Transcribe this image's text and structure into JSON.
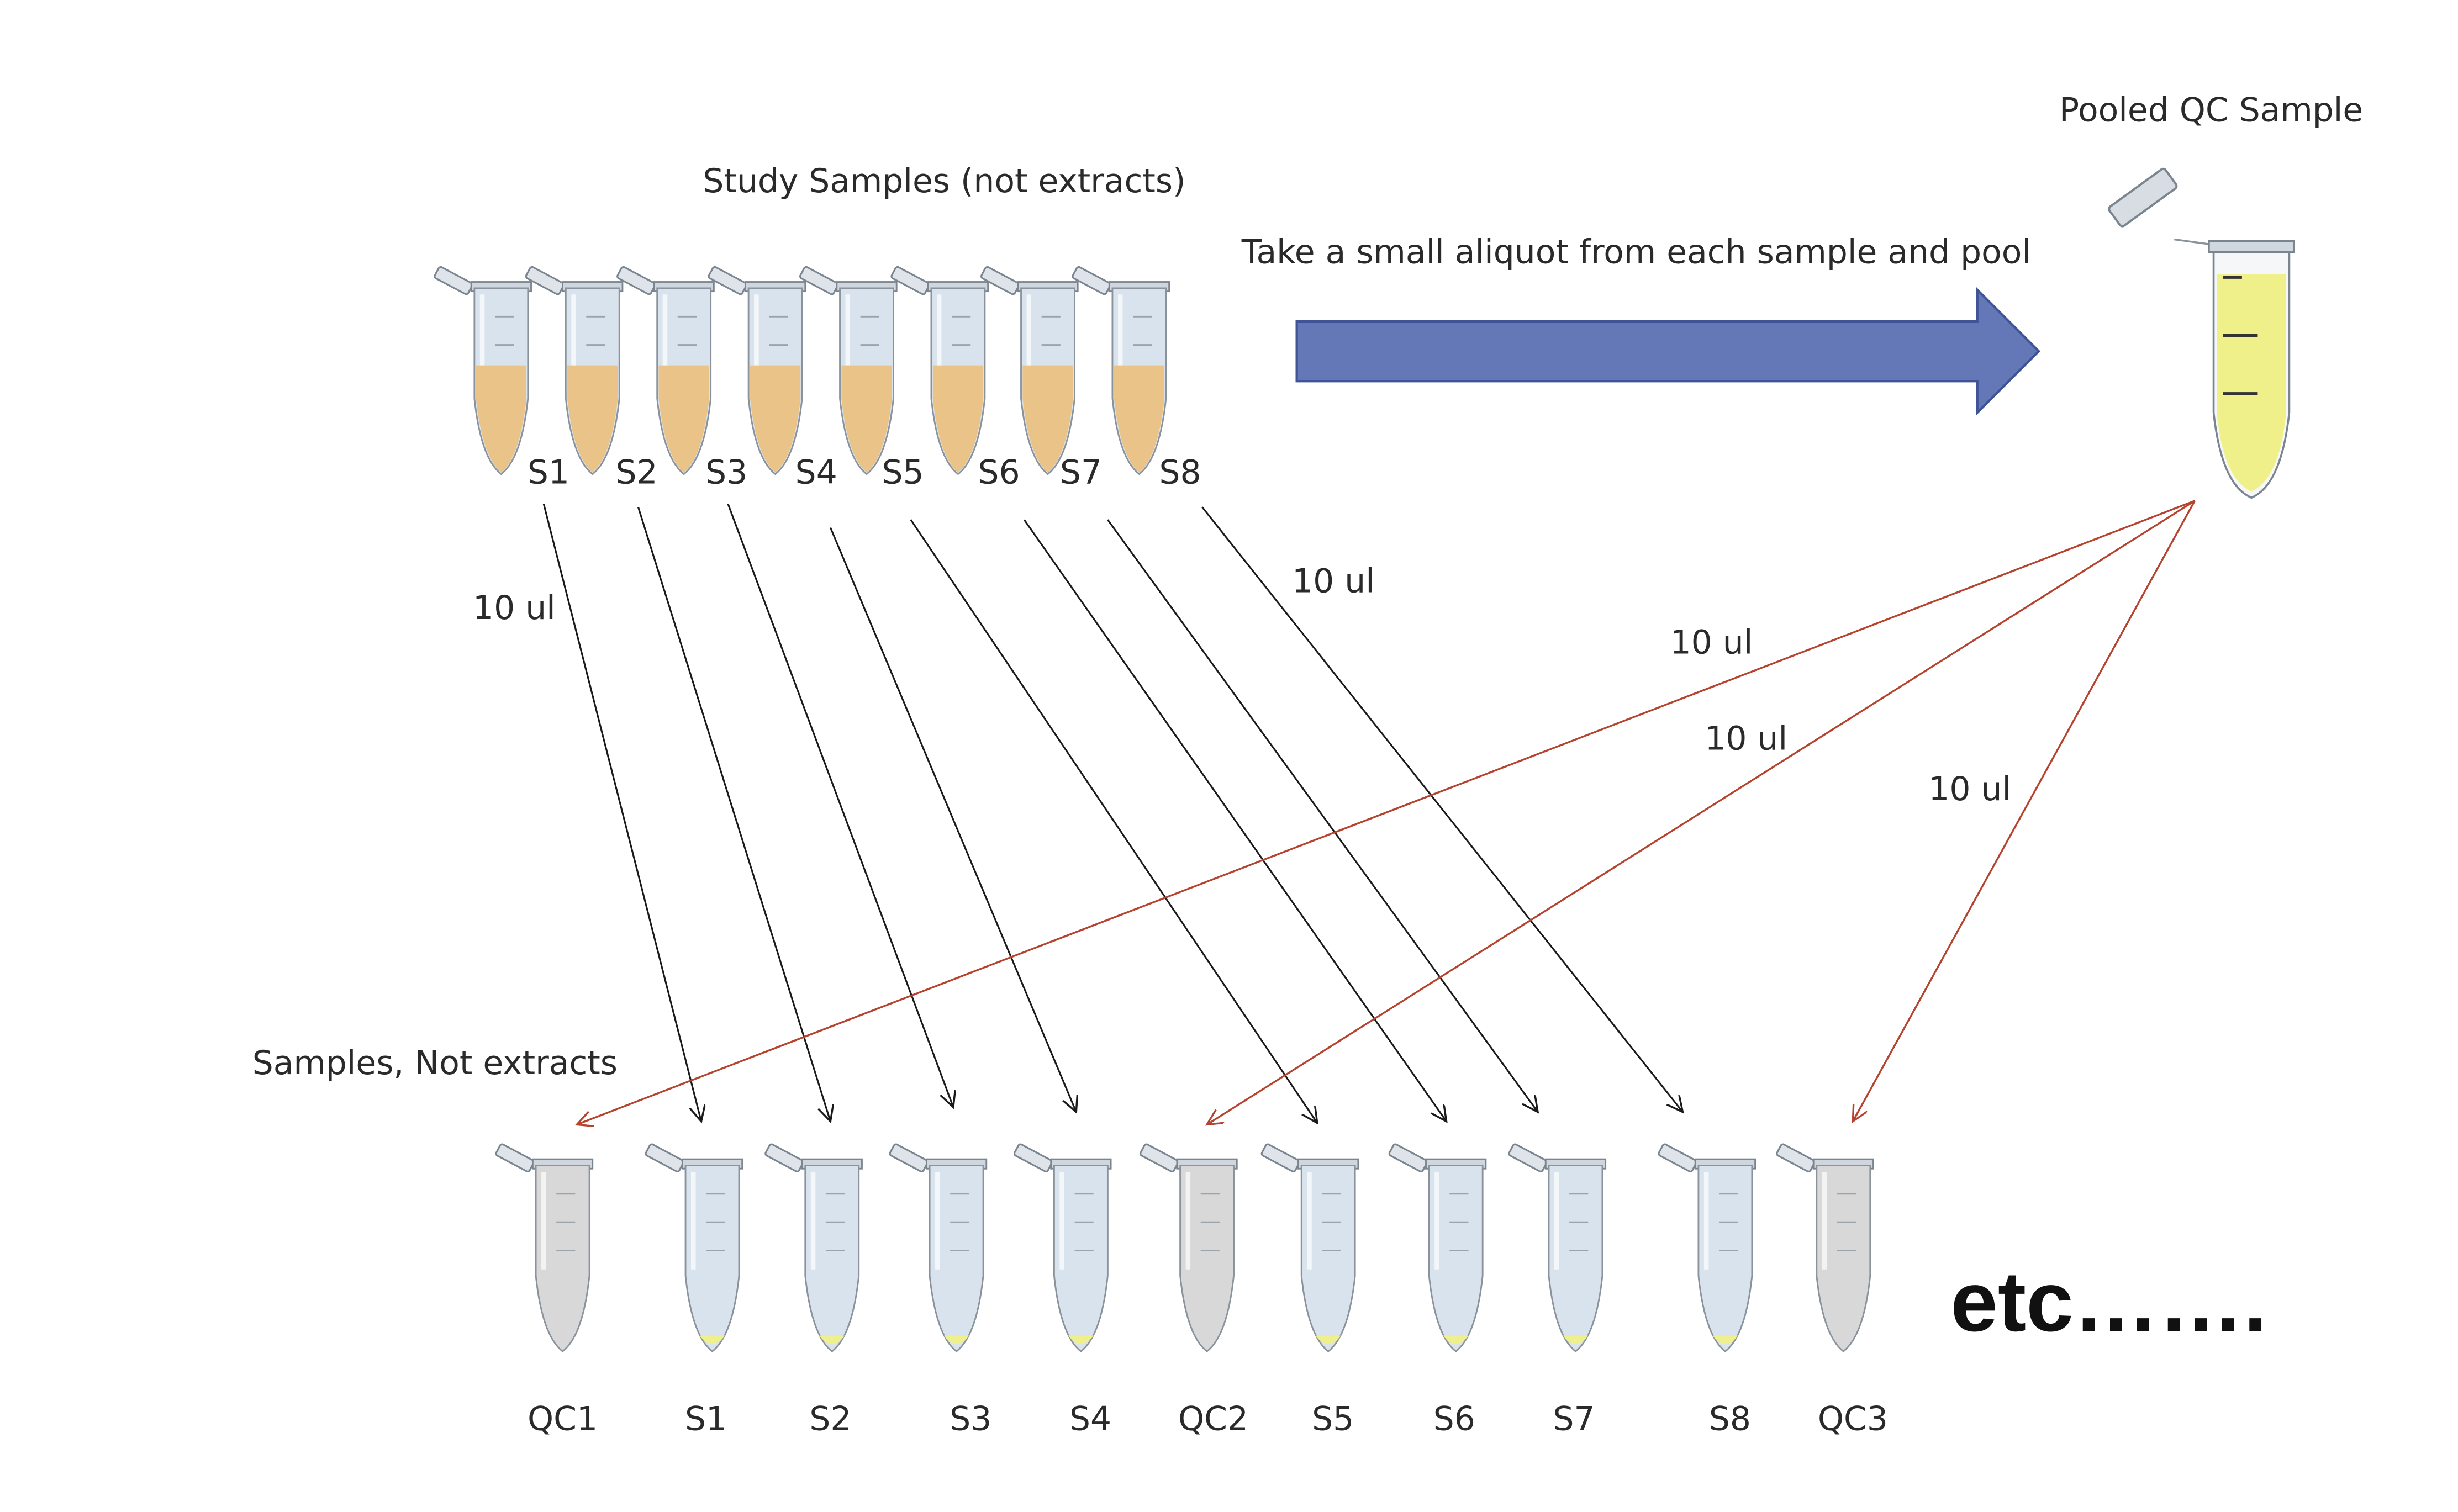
{
  "labels": {
    "study_samples": "Study Samples (not extracts)",
    "pool_instruction": "Take a small aliquot from each sample and pool",
    "pooled_qc": "Pooled QC Sample",
    "bottom_row": "Samples, Not extracts",
    "etc": "etc……."
  },
  "volume_labels": [
    "10 ul",
    "10 ul",
    "10 ul",
    "10 ul",
    "10 ul"
  ],
  "top_tubes": [
    "S1",
    "S2",
    "S3",
    "S4",
    "S5",
    "S6",
    "S7",
    "S8"
  ],
  "bottom_tubes": [
    "QC1",
    "S1",
    "S2",
    "S3",
    "S4",
    "QC2",
    "S5",
    "S6",
    "S7",
    "S8",
    "QC3"
  ],
  "bottom_tube_kinds": [
    "qc",
    "sample",
    "sample",
    "sample",
    "sample",
    "qc",
    "sample",
    "sample",
    "sample",
    "sample",
    "qc"
  ],
  "colors": {
    "big_arrow": "#6478b8",
    "big_arrow_stroke": "#3e5497",
    "black_arrow": "#1a1a1a",
    "red_arrow": "#b5432e",
    "study_liquid": "#e9c388",
    "pooled_liquid": "#f0f08a",
    "sample_tube": "#d9e3ee",
    "qc_tube": "#d8d8d8",
    "tip_liquid": "#eef08e"
  },
  "icons": {
    "tube": "microcentrifuge-tube-icon",
    "big_arrow": "block-arrow-right-icon"
  }
}
